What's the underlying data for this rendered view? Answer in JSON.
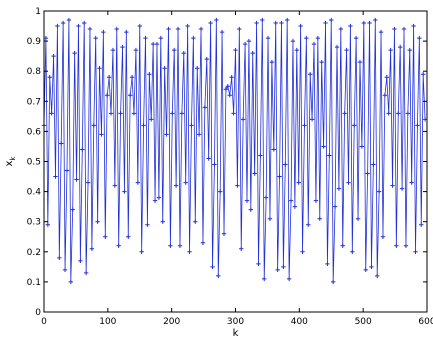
{
  "chart_data": {
    "type": "line",
    "title": "",
    "xlabel": "k",
    "ylabel": "x",
    "ylabel_subscript": "k",
    "xlim": [
      0,
      600
    ],
    "ylim": [
      0,
      1
    ],
    "xticks": [
      0,
      100,
      200,
      300,
      400,
      500,
      600
    ],
    "yticks": [
      0,
      0.1,
      0.2,
      0.3,
      0.4,
      0.5,
      0.6,
      0.7,
      0.8,
      0.9,
      1
    ],
    "xtick_labels": [
      "0",
      "100",
      "200",
      "300",
      "400",
      "500",
      "600"
    ],
    "ytick_labels": [
      "0",
      "0.1",
      "0.2",
      "0.3",
      "0.4",
      "0.5",
      "0.6",
      "0.7",
      "0.8",
      "0.9",
      "1"
    ],
    "grid": false,
    "marker": "plus",
    "series": [
      {
        "x0": 0,
        "dx": 3,
        "values": [
          0.62,
          0.91,
          0.29,
          0.78,
          0.66,
          0.85,
          0.45,
          0.95,
          0.18,
          0.56,
          0.96,
          0.14,
          0.47,
          0.97,
          0.1,
          0.34,
          0.86,
          0.44,
          0.95,
          0.17,
          0.54,
          0.96,
          0.13,
          0.43,
          0.94,
          0.21,
          0.62,
          0.91,
          0.3,
          0.81,
          0.59,
          0.93,
          0.25,
          0.72,
          0.78,
          0.66,
          0.87,
          0.42,
          0.94,
          0.22,
          0.66,
          0.88,
          0.4,
          0.93,
          0.25,
          0.72,
          0.78,
          0.66,
          0.87,
          0.43,
          0.95,
          0.2,
          0.62,
          0.91,
          0.29,
          0.79,
          0.64,
          0.89,
          0.37,
          0.89,
          0.38,
          0.91,
          0.3,
          0.81,
          0.59,
          0.94,
          0.22,
          0.66,
          0.87,
          0.42,
          0.94,
          0.22,
          0.66,
          0.86,
          0.43,
          0.95,
          0.2,
          0.62,
          0.91,
          0.3,
          0.81,
          0.59,
          0.94,
          0.23,
          0.68,
          0.84,
          0.51,
          0.96,
          0.15,
          0.49,
          0.97,
          0.12,
          0.4,
          0.93,
          0.26,
          0.74,
          0.75,
          0.72,
          0.78,
          0.66,
          0.87,
          0.42,
          0.94,
          0.21,
          0.64,
          0.89,
          0.37,
          0.9,
          0.34,
          0.86,
          0.46,
          0.96,
          0.16,
          0.52,
          0.97,
          0.11,
          0.38,
          0.91,
          0.31,
          0.83,
          0.54,
          0.96,
          0.14,
          0.45,
          0.96,
          0.15,
          0.49,
          0.97,
          0.11,
          0.37,
          0.9,
          0.35,
          0.87,
          0.43,
          0.95,
          0.2,
          0.62,
          0.91,
          0.29,
          0.79,
          0.64,
          0.89,
          0.37,
          0.91,
          0.31,
          0.83,
          0.55,
          0.96,
          0.16,
          0.52,
          0.97,
          0.1,
          0.35,
          0.88,
          0.41,
          0.94,
          0.22,
          0.66,
          0.87,
          0.43,
          0.95,
          0.2,
          0.62,
          0.91,
          0.31,
          0.83,
          0.55,
          0.96,
          0.14,
          0.46,
          0.96,
          0.15,
          0.49,
          0.97,
          0.12,
          0.4,
          0.93,
          0.25,
          0.72,
          0.78,
          0.66,
          0.87,
          0.42,
          0.94,
          0.22,
          0.66,
          0.88,
          0.41,
          0.94,
          0.22,
          0.66,
          0.87,
          0.43,
          0.95,
          0.2,
          0.62,
          0.91,
          0.29,
          0.79,
          0.64
        ]
      }
    ]
  },
  "colors": {
    "series": "#2230d8",
    "axes": "#000000",
    "background": "#ffffff"
  }
}
